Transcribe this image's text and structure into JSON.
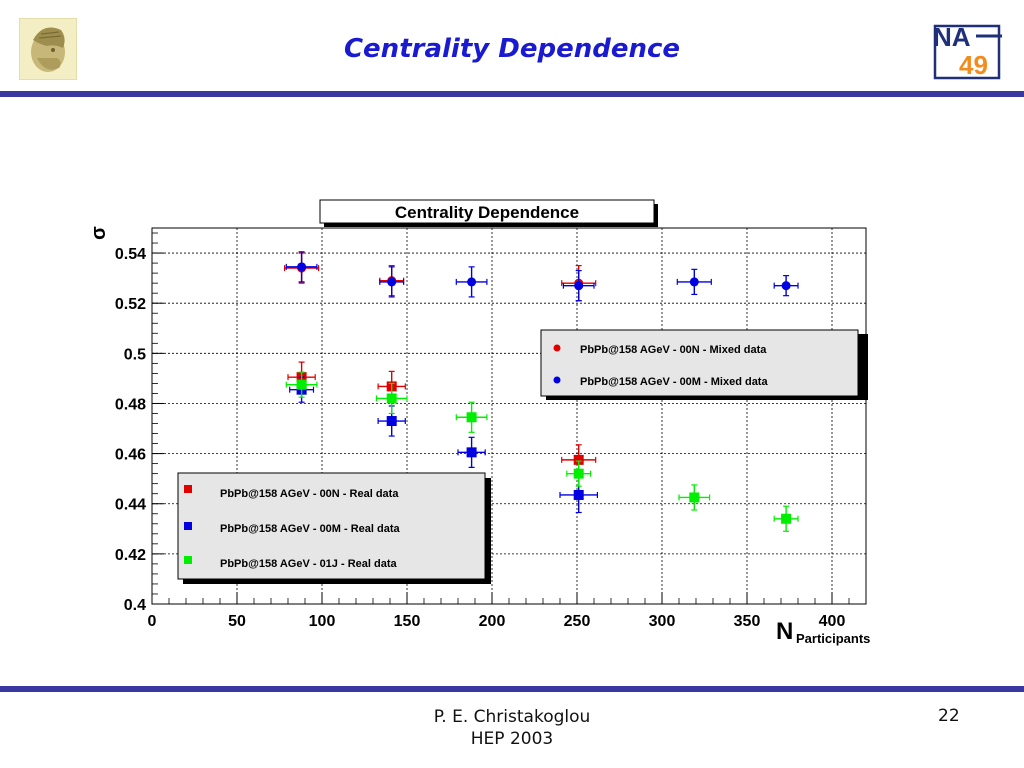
{
  "slide": {
    "title": "Centrality Dependence",
    "footer_author": "P. E. Christakoglou",
    "footer_event": "HEP 2003",
    "page_number": "22",
    "logo_right_text_top": "NA",
    "logo_right_text_bottom": "49",
    "colors": {
      "title": "#1a1ad0",
      "rule": "#3a37a0"
    }
  },
  "chart_data": {
    "type": "scatter",
    "title": "Centrality Dependence",
    "xlabel": "N",
    "xlabel_subscript": "Participants",
    "ylabel": "σ",
    "xlim": [
      0,
      420
    ],
    "ylim": [
      0.4,
      0.55
    ],
    "xticks": [
      0,
      50,
      100,
      150,
      200,
      250,
      300,
      350,
      400
    ],
    "yticks": [
      0.4,
      0.42,
      0.44,
      0.46,
      0.48,
      0.5,
      0.52,
      0.54
    ],
    "ytick_labels": [
      "0.4",
      "0.42",
      "0.44",
      "0.46",
      "0.48",
      "0.5",
      "0.52",
      "0.54"
    ],
    "grid": true,
    "legends": [
      {
        "placement": "right",
        "entries": [
          {
            "label": "PbPb@158 AGeV - 00N - Mixed data",
            "color": "#e00000",
            "marker": "circle"
          },
          {
            "label": "PbPb@158 AGeV - 00M - Mixed data",
            "color": "#0000e0",
            "marker": "circle"
          }
        ]
      },
      {
        "placement": "bottom-left",
        "entries": [
          {
            "label": "PbPb@158 AGeV - 00N - Real data",
            "color": "#e00000",
            "marker": "square"
          },
          {
            "label": "PbPb@158 AGeV - 00M - Real data",
            "color": "#0000e0",
            "marker": "square"
          },
          {
            "label": "PbPb@158 AGeV - 01J - Real data",
            "color": "#00ee00",
            "marker": "square"
          }
        ]
      }
    ],
    "series": [
      {
        "color": "#e00000",
        "marker": "circle",
        "x": [
          88,
          141,
          251
        ],
        "y": [
          0.534,
          0.529,
          0.528
        ],
        "yerr": [
          0.006,
          0.006,
          0.007
        ],
        "xerr": [
          10,
          7,
          10
        ]
      },
      {
        "color": "#0000e0",
        "marker": "circle",
        "x": [
          88,
          141,
          188,
          251,
          319,
          373
        ],
        "y": [
          0.5345,
          0.5285,
          0.5285,
          0.527,
          0.5285,
          0.527
        ],
        "yerr": [
          0.006,
          0.006,
          0.006,
          0.006,
          0.005,
          0.004
        ],
        "xerr": [
          9,
          7,
          9,
          9,
          10,
          7
        ]
      },
      {
        "color": "#e00000",
        "marker": "square",
        "x": [
          88,
          141,
          251
        ],
        "y": [
          0.4905,
          0.4868,
          0.4575
        ],
        "yerr": [
          0.006,
          0.006,
          0.006
        ],
        "xerr": [
          8,
          8,
          10
        ]
      },
      {
        "color": "#0000e0",
        "marker": "square",
        "x": [
          88,
          141,
          188,
          251
        ],
        "y": [
          0.4855,
          0.473,
          0.4605,
          0.4435
        ],
        "yerr": [
          0.005,
          0.006,
          0.006,
          0.007
        ],
        "xerr": [
          7,
          8,
          8,
          11
        ]
      },
      {
        "color": "#00ee00",
        "marker": "square",
        "x": [
          88,
          141,
          188,
          251,
          319,
          373
        ],
        "y": [
          0.4875,
          0.482,
          0.4745,
          0.452,
          0.4425,
          0.434
        ],
        "yerr": [
          0.005,
          0.006,
          0.006,
          0.005,
          0.005,
          0.005
        ],
        "xerr": [
          9,
          9,
          9,
          7,
          9,
          7
        ]
      }
    ]
  }
}
